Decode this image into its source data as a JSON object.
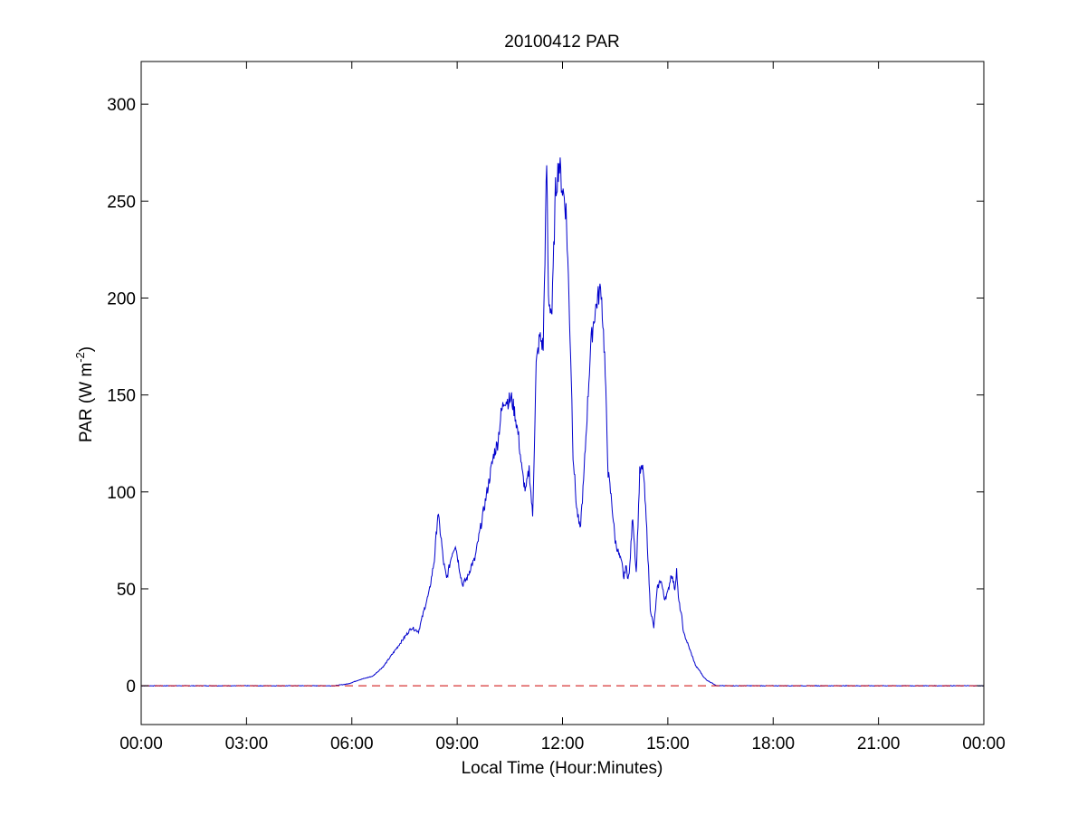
{
  "chart_data": {
    "type": "line",
    "title": "20100412 PAR",
    "xlabel": "Local Time (Hour:Minutes)",
    "ylabel": {
      "prefix": "PAR (W m",
      "superscript": "-2",
      "suffix": ")"
    },
    "xlim": [
      0,
      24
    ],
    "ylim": [
      -20,
      322
    ],
    "grid": false,
    "x_ticks": [
      {
        "value": 0,
        "label": "00:00"
      },
      {
        "value": 3,
        "label": "03:00"
      },
      {
        "value": 6,
        "label": "06:00"
      },
      {
        "value": 9,
        "label": "09:00"
      },
      {
        "value": 12,
        "label": "12:00"
      },
      {
        "value": 15,
        "label": "15:00"
      },
      {
        "value": 18,
        "label": "18:00"
      },
      {
        "value": 21,
        "label": "21:00"
      },
      {
        "value": 24,
        "label": "00:00"
      }
    ],
    "y_ticks": [
      {
        "value": 0,
        "label": "0"
      },
      {
        "value": 50,
        "label": "50"
      },
      {
        "value": 100,
        "label": "100"
      },
      {
        "value": 150,
        "label": "150"
      },
      {
        "value": 200,
        "label": "200"
      },
      {
        "value": 250,
        "label": "250"
      },
      {
        "value": 300,
        "label": "300"
      }
    ],
    "reference_line": {
      "y": 0,
      "color": "#cc0000",
      "style": "dashed"
    },
    "series": [
      {
        "color": "#0000cc",
        "x_hours": [
          0.0,
          5.5,
          5.9,
          6.2,
          6.6,
          6.9,
          7.1,
          7.3,
          7.5,
          7.7,
          7.9,
          8.0,
          8.1,
          8.2,
          8.35,
          8.45,
          8.55,
          8.6,
          8.7,
          8.85,
          8.95,
          9.05,
          9.15,
          9.3,
          9.4,
          9.5,
          9.65,
          9.75,
          9.85,
          9.95,
          10.05,
          10.15,
          10.25,
          10.35,
          10.45,
          10.55,
          10.65,
          10.75,
          10.85,
          10.95,
          11.05,
          11.15,
          11.25,
          11.35,
          11.45,
          11.55,
          11.6,
          11.7,
          11.8,
          11.9,
          12.0,
          12.05,
          12.1,
          12.15,
          12.2,
          12.25,
          12.3,
          12.4,
          12.5,
          12.6,
          12.7,
          12.8,
          12.9,
          13.0,
          13.1,
          13.2,
          13.3,
          13.4,
          13.5,
          13.6,
          13.7,
          13.75,
          13.8,
          13.85,
          13.9,
          14.0,
          14.1,
          14.2,
          14.3,
          14.4,
          14.5,
          14.6,
          14.7,
          14.8,
          14.9,
          15.0,
          15.1,
          15.2,
          15.25,
          15.3,
          15.4,
          15.45,
          15.5,
          15.6,
          15.7,
          15.8,
          15.9,
          16.0,
          16.1,
          16.2,
          16.3,
          16.4,
          16.5,
          16.55,
          16.6,
          16.7,
          16.8,
          16.9,
          17.0,
          17.1,
          17.2,
          17.3,
          17.5,
          17.8,
          18.0,
          18.2,
          18.5,
          19.0,
          24.0
        ],
        "y": [
          0,
          0,
          1,
          3,
          5,
          10,
          15,
          20,
          25,
          30,
          28,
          35,
          42,
          48,
          65,
          89,
          75,
          65,
          55,
          68,
          73,
          62,
          52,
          56,
          62,
          65,
          80,
          90,
          100,
          110,
          120,
          125,
          140,
          148,
          147,
          148,
          140,
          128,
          110,
          100,
          112,
          87,
          165,
          180,
          175,
          270,
          200,
          192,
          255,
          270,
          256,
          252,
          245,
          220,
          190,
          160,
          120,
          92,
          80,
          105,
          140,
          175,
          190,
          200,
          205,
          170,
          110,
          95,
          75,
          68,
          62,
          55,
          62,
          57,
          57,
          88,
          58,
          110,
          112,
          80,
          40,
          30,
          50,
          55,
          45,
          48,
          58,
          50,
          60,
          45,
          35,
          27,
          25,
          20,
          15,
          10,
          8,
          5,
          3,
          2,
          1,
          0,
          0,
          0,
          0,
          0,
          0,
          0,
          0,
          0,
          0,
          0,
          0,
          0,
          0,
          0,
          0,
          0,
          0
        ]
      }
    ]
  }
}
